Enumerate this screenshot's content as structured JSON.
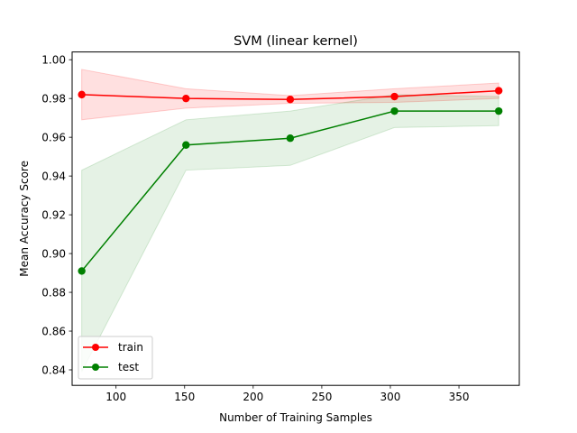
{
  "chart_data": {
    "type": "line",
    "title": "SVM (linear kernel)",
    "xlabel": "Number of Training Samples",
    "ylabel": "Mean Accuracy Score",
    "xlim": [
      68,
      394
    ],
    "ylim": [
      0.832,
      1.004
    ],
    "x": [
      75,
      151,
      227,
      303,
      379
    ],
    "x_ticks": [
      100,
      150,
      200,
      250,
      300,
      350
    ],
    "y_ticks": [
      0.84,
      0.86,
      0.88,
      0.9,
      0.92,
      0.94,
      0.96,
      0.98,
      1.0
    ],
    "x_tick_labels": [
      "100",
      "150",
      "200",
      "250",
      "300",
      "350"
    ],
    "y_tick_labels": [
      "0.84",
      "0.86",
      "0.88",
      "0.90",
      "0.92",
      "0.94",
      "0.96",
      "0.98",
      "1.00"
    ],
    "grid": false,
    "legend_position": "lower-left",
    "series": [
      {
        "name": "train",
        "color": "#ff0000",
        "marker": "circle",
        "values": [
          0.982,
          0.98,
          0.9795,
          0.981,
          0.984
        ],
        "band_lower": [
          0.969,
          0.975,
          0.9775,
          0.978,
          0.98
        ],
        "band_upper": [
          0.995,
          0.985,
          0.9815,
          0.985,
          0.988
        ],
        "band_color": "#ff0000",
        "band_opacity": 0.12
      },
      {
        "name": "test",
        "color": "#008000",
        "marker": "circle",
        "values": [
          0.891,
          0.956,
          0.9595,
          0.9735,
          0.9735
        ],
        "band_lower": [
          0.839,
          0.943,
          0.9455,
          0.965,
          0.966
        ],
        "band_upper": [
          0.943,
          0.969,
          0.9735,
          0.982,
          0.981
        ],
        "band_color": "#008000",
        "band_opacity": 0.1
      }
    ]
  }
}
